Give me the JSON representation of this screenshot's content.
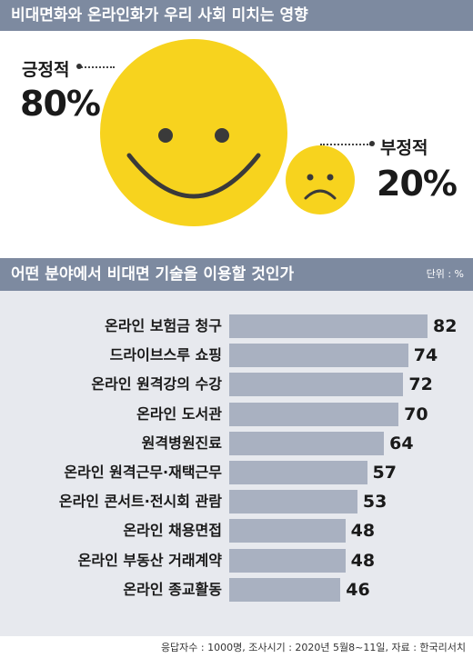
{
  "sections": {
    "impact_title": "비대면화와 온라인화가 우리 사회 미치는 영향",
    "usage_title": "어떤 분야에서 비대면 기술을 이용할 것인가",
    "unit": "단위 : %"
  },
  "impact": {
    "positive_label": "긍정적",
    "positive_value": "80%",
    "negative_label": "부정적",
    "negative_value": "20%"
  },
  "colors": {
    "header": "#7d8aa0",
    "face": "#f7d31e",
    "bar": "#a9b1c1",
    "chart_background": "#e7e9ee"
  },
  "chart_data": {
    "type": "bar",
    "orientation": "horizontal",
    "title": "어떤 분야에서 비대면 기술을 이용할 것인가",
    "unit": "단위 : %",
    "categories": [
      "온라인 보험금 청구",
      "드라이브스루 쇼핑",
      "온라인 원격강의 수강",
      "온라인 도서관",
      "원격병원진료",
      "온라인 원격근무·재택근무",
      "온라인 콘서트·전시회 관람",
      "온라인 채용면접",
      "온라인 부동산 거래계약",
      "온라인 종교활동"
    ],
    "values": [
      82,
      74,
      72,
      70,
      64,
      57,
      53,
      48,
      48,
      46
    ],
    "data_labels": true
  },
  "footer": "응답자수 : 1000명, 조사시기 : 2020년 5월8~11일, 자료 : 한국리서치"
}
